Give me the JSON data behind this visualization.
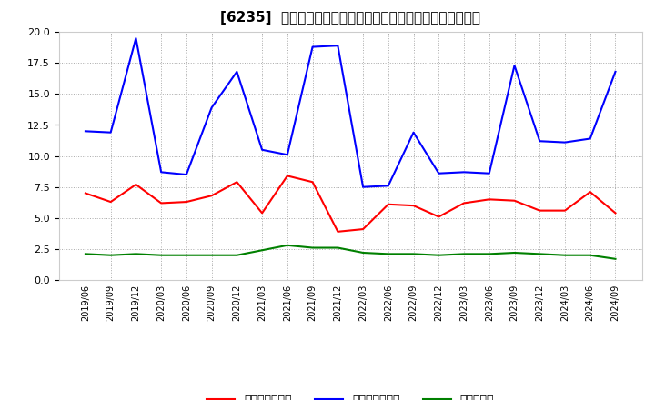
{
  "title": "[6235]  売上債権回転率、買入債務回転率、在庫回転率の推移",
  "dates": [
    "2019/06",
    "2019/09",
    "2019/12",
    "2020/03",
    "2020/06",
    "2020/09",
    "2020/12",
    "2021/03",
    "2021/06",
    "2021/09",
    "2021/12",
    "2022/03",
    "2022/06",
    "2022/09",
    "2022/12",
    "2023/03",
    "2023/06",
    "2023/09",
    "2023/12",
    "2024/03",
    "2024/06",
    "2024/09"
  ],
  "receivable_turnover": [
    7.0,
    6.3,
    7.7,
    6.2,
    6.3,
    6.8,
    7.9,
    5.4,
    8.4,
    7.9,
    3.9,
    4.1,
    6.1,
    6.0,
    5.1,
    6.2,
    6.5,
    6.4,
    5.6,
    5.6,
    7.1,
    5.4
  ],
  "payable_turnover": [
    12.0,
    11.9,
    19.5,
    8.7,
    8.5,
    13.9,
    16.8,
    10.5,
    10.1,
    18.8,
    18.9,
    7.5,
    7.6,
    11.9,
    8.6,
    8.7,
    8.6,
    17.3,
    11.2,
    11.1,
    11.4,
    16.8
  ],
  "inventory_turnover": [
    2.1,
    2.0,
    2.1,
    2.0,
    2.0,
    2.0,
    2.0,
    2.4,
    2.8,
    2.6,
    2.6,
    2.2,
    2.1,
    2.1,
    2.0,
    2.1,
    2.1,
    2.2,
    2.1,
    2.0,
    2.0,
    1.7
  ],
  "receivable_color": "#ff0000",
  "payable_color": "#0000ff",
  "inventory_color": "#008000",
  "ylim": [
    0.0,
    20.0
  ],
  "yticks": [
    0.0,
    2.5,
    5.0,
    7.5,
    10.0,
    12.5,
    15.0,
    17.5,
    20.0
  ],
  "legend_labels": [
    "売上債権回転率",
    "買入債務回転率",
    "在庫回転率"
  ],
  "bg_color": "#ffffff",
  "grid_color": "#aaaaaa",
  "title_fontsize": 11
}
